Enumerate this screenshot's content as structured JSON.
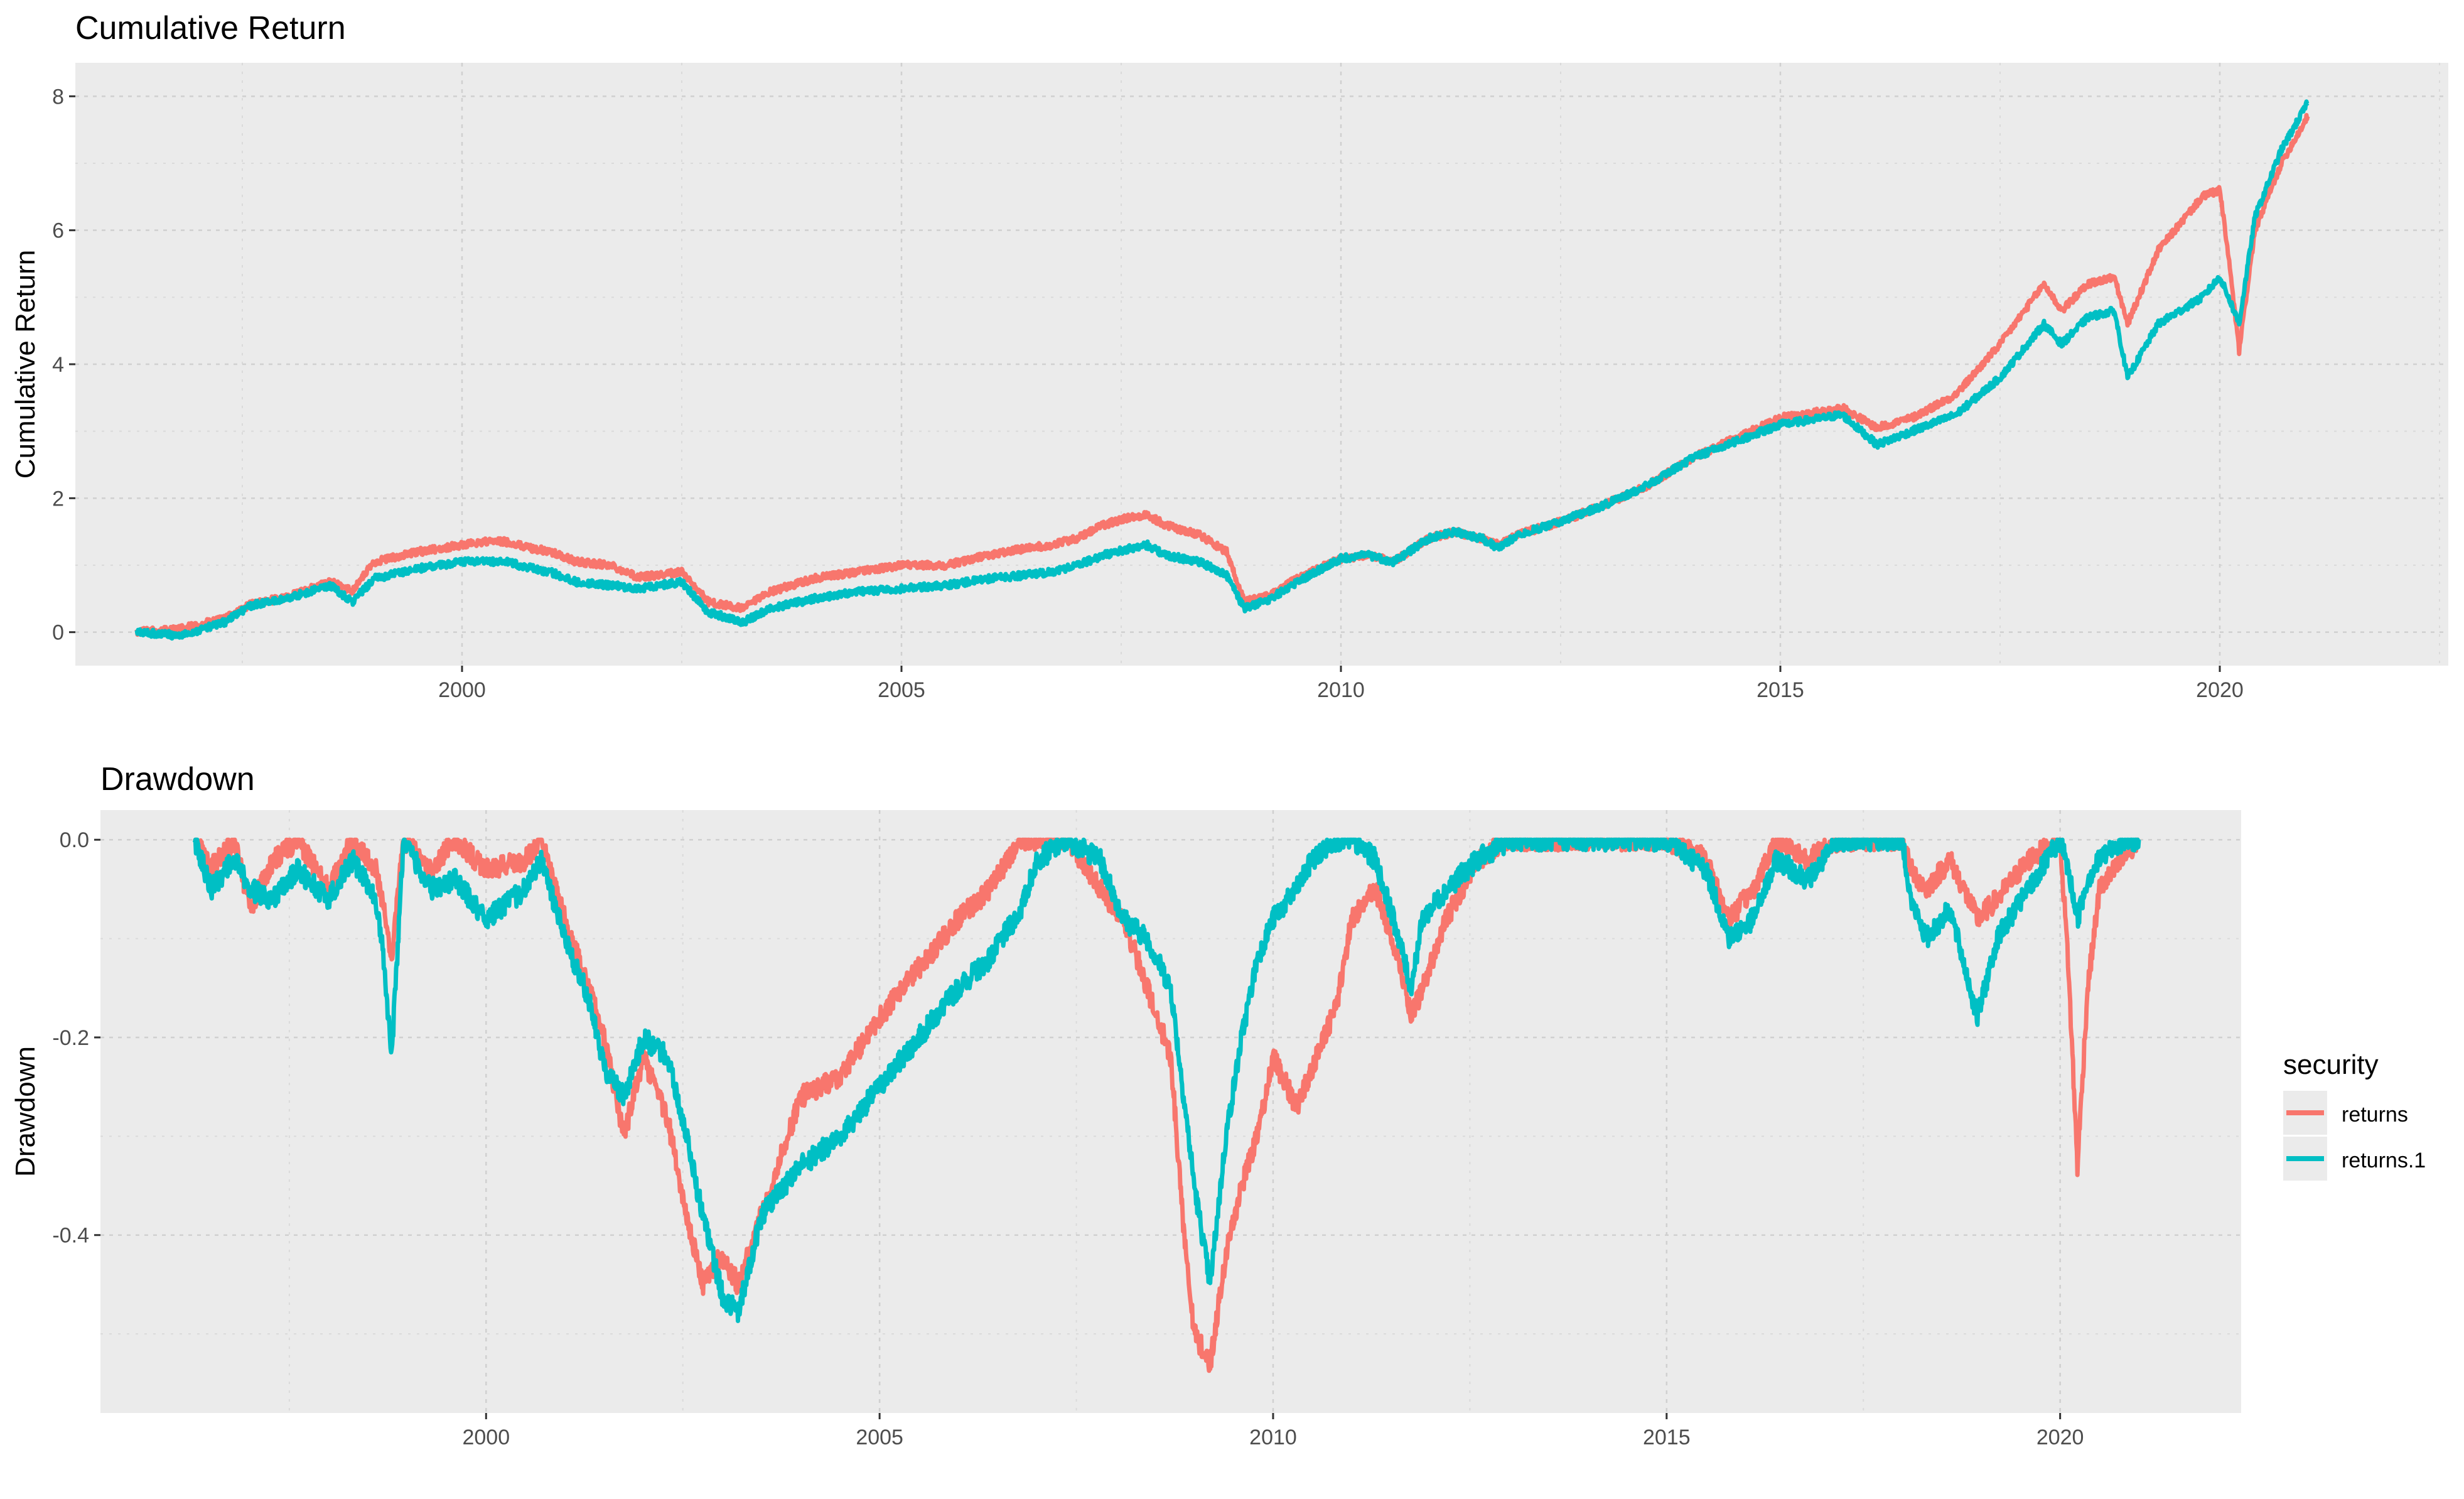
{
  "colors": {
    "returns": "#F8766D",
    "returns_1": "#00BFC4",
    "panel_bg": "#EBEBEB",
    "grid_major": "#D0D0D0",
    "grid_minor": "#F4F4F4",
    "text": "#000000",
    "tick_text": "#4D4D4D"
  },
  "chart_data": [
    {
      "type": "line",
      "title": "Cumulative Return",
      "xlabel": "",
      "ylabel": "Cumulative Return",
      "xlim": [
        1995.6,
        2022.6
      ],
      "ylim": [
        -0.5,
        8.5
      ],
      "x_ticks": [
        2000,
        2005,
        2010,
        2015,
        2020
      ],
      "x_tick_labels": [
        "2000",
        "2005",
        "2010",
        "2015",
        "2020"
      ],
      "y_ticks": [
        0,
        2,
        4,
        6,
        8
      ],
      "y_tick_labels": [
        "0",
        "2",
        "4",
        "6",
        "8"
      ],
      "grid": true,
      "x": [
        1996.3,
        1996.8,
        1997.3,
        1997.6,
        1998.0,
        1998.5,
        1998.75,
        1999.0,
        1999.5,
        2000.0,
        2000.25,
        2000.5,
        2000.8,
        2001.0,
        2001.3,
        2001.7,
        2002.0,
        2002.5,
        2002.8,
        2003.2,
        2003.5,
        2004.0,
        2004.5,
        2005.0,
        2005.5,
        2006.0,
        2006.4,
        2006.7,
        2007.0,
        2007.3,
        2007.6,
        2007.8,
        2008.0,
        2008.4,
        2008.7,
        2008.9,
        2009.2,
        2009.5,
        2010.0,
        2010.3,
        2010.6,
        2011.0,
        2011.3,
        2011.6,
        2011.8,
        2012.0,
        2012.5,
        2013.0,
        2013.5,
        2014.0,
        2014.5,
        2015.0,
        2015.5,
        2015.7,
        2016.1,
        2016.5,
        2017.0,
        2017.5,
        2018.0,
        2018.2,
        2018.5,
        2018.8,
        2018.95,
        2019.3,
        2019.8,
        2020.0,
        2020.1,
        2020.22,
        2020.4,
        2020.7,
        2021.0
      ],
      "series": [
        {
          "name": "returns",
          "color": "#F8766D",
          "values": [
            0.0,
            0.05,
            0.2,
            0.42,
            0.52,
            0.75,
            0.62,
            1.05,
            1.2,
            1.3,
            1.35,
            1.35,
            1.25,
            1.2,
            1.05,
            1.0,
            0.82,
            0.9,
            0.45,
            0.35,
            0.6,
            0.8,
            0.9,
            1.0,
            1.0,
            1.15,
            1.25,
            1.3,
            1.4,
            1.6,
            1.72,
            1.75,
            1.6,
            1.45,
            1.2,
            0.45,
            0.55,
            0.8,
            1.1,
            1.15,
            1.05,
            1.4,
            1.5,
            1.4,
            1.3,
            1.45,
            1.65,
            1.9,
            2.2,
            2.6,
            2.9,
            3.2,
            3.3,
            3.35,
            3.05,
            3.2,
            3.55,
            4.3,
            5.2,
            4.8,
            5.2,
            5.3,
            4.6,
            5.7,
            6.5,
            6.6,
            5.6,
            4.2,
            6.0,
            7.0,
            7.7
          ]
        },
        {
          "name": "returns.1",
          "color": "#00BFC4",
          "values": [
            0.0,
            -0.05,
            0.15,
            0.4,
            0.5,
            0.7,
            0.45,
            0.8,
            0.95,
            1.05,
            1.05,
            1.05,
            0.95,
            0.9,
            0.75,
            0.7,
            0.65,
            0.75,
            0.3,
            0.15,
            0.35,
            0.5,
            0.6,
            0.65,
            0.7,
            0.8,
            0.85,
            0.9,
            1.0,
            1.15,
            1.25,
            1.3,
            1.15,
            1.05,
            0.85,
            0.35,
            0.5,
            0.75,
            1.1,
            1.15,
            1.05,
            1.4,
            1.5,
            1.4,
            1.25,
            1.45,
            1.65,
            1.9,
            2.2,
            2.6,
            2.85,
            3.1,
            3.2,
            3.25,
            2.8,
            3.0,
            3.25,
            3.8,
            4.6,
            4.3,
            4.7,
            4.8,
            3.8,
            4.6,
            5.0,
            5.3,
            5.0,
            4.6,
            6.2,
            7.2,
            7.9
          ]
        }
      ]
    },
    {
      "type": "line",
      "title": "Drawdown",
      "xlabel": "",
      "ylabel": "Drawdown",
      "xlim": [
        1995.1,
        2022.3
      ],
      "ylim": [
        -0.58,
        0.03
      ],
      "x_ticks": [
        2000,
        2005,
        2010,
        2015,
        2020
      ],
      "x_tick_labels": [
        "2000",
        "2005",
        "2010",
        "2015",
        "2020"
      ],
      "y_ticks": [
        0.0,
        -0.2,
        -0.4
      ],
      "y_tick_labels": [
        "0.0",
        "-0.2",
        "-0.4"
      ],
      "grid": true,
      "legend_position": "right",
      "legend_title": "security",
      "x": [
        1996.3,
        1996.5,
        1996.8,
        1997.0,
        1997.3,
        1997.6,
        1998.0,
        1998.3,
        1998.6,
        1998.7,
        1998.8,
        1998.95,
        1999.3,
        1999.6,
        2000.0,
        2000.5,
        2000.7,
        2001.0,
        2001.3,
        2001.5,
        2001.75,
        2002.0,
        2002.3,
        2002.55,
        2002.75,
        2003.0,
        2003.2,
        2003.5,
        2004.0,
        2004.5,
        2005.0,
        2005.5,
        2006.0,
        2006.4,
        2006.8,
        2007.0,
        2007.4,
        2007.8,
        2008.1,
        2008.4,
        2008.7,
        2008.85,
        2009.0,
        2009.2,
        2009.4,
        2009.6,
        2009.8,
        2010.0,
        2010.3,
        2010.5,
        2010.8,
        2011.0,
        2011.3,
        2011.6,
        2011.75,
        2011.9,
        2012.2,
        2012.6,
        2013.0,
        2014.0,
        2015.0,
        2015.5,
        2015.8,
        2016.1,
        2016.4,
        2016.8,
        2017.2,
        2018.0,
        2018.1,
        2018.3,
        2018.6,
        2018.95,
        2019.2,
        2019.6,
        2020.0,
        2020.1,
        2020.22,
        2020.35,
        2020.5,
        2020.8,
        2021.0
      ],
      "series": [
        {
          "name": "returns",
          "color": "#F8766D",
          "values": [
            0.0,
            -0.03,
            0.0,
            -0.07,
            -0.02,
            0.0,
            -0.05,
            0.0,
            -0.03,
            -0.07,
            -0.12,
            0.0,
            -0.03,
            0.0,
            -0.03,
            -0.02,
            0.0,
            -0.08,
            -0.15,
            -0.2,
            -0.3,
            -0.22,
            -0.28,
            -0.38,
            -0.45,
            -0.42,
            -0.45,
            -0.38,
            -0.26,
            -0.24,
            -0.18,
            -0.13,
            -0.08,
            -0.05,
            0.0,
            0.0,
            0.0,
            -0.05,
            -0.08,
            -0.15,
            -0.22,
            -0.38,
            -0.5,
            -0.53,
            -0.42,
            -0.35,
            -0.3,
            -0.22,
            -0.27,
            -0.23,
            -0.17,
            -0.08,
            -0.05,
            -0.12,
            -0.18,
            -0.15,
            -0.08,
            -0.02,
            0.0,
            0.0,
            0.0,
            -0.02,
            -0.08,
            -0.05,
            0.0,
            -0.02,
            0.0,
            0.0,
            -0.03,
            -0.05,
            -0.02,
            -0.08,
            -0.06,
            -0.02,
            0.0,
            -0.12,
            -0.33,
            -0.15,
            -0.05,
            -0.02,
            0.0
          ]
        },
        {
          "name": "returns.1",
          "color": "#00BFC4",
          "values": [
            0.0,
            -0.05,
            -0.02,
            -0.05,
            -0.06,
            -0.03,
            -0.06,
            -0.02,
            -0.06,
            -0.12,
            -0.22,
            0.0,
            -0.05,
            -0.04,
            -0.08,
            -0.05,
            -0.02,
            -0.1,
            -0.16,
            -0.23,
            -0.26,
            -0.2,
            -0.22,
            -0.3,
            -0.38,
            -0.46,
            -0.48,
            -0.38,
            -0.33,
            -0.3,
            -0.25,
            -0.2,
            -0.15,
            -0.12,
            -0.07,
            -0.02,
            0.0,
            -0.02,
            -0.08,
            -0.1,
            -0.15,
            -0.25,
            -0.35,
            -0.45,
            -0.3,
            -0.2,
            -0.12,
            -0.08,
            -0.05,
            -0.02,
            0.0,
            0.0,
            -0.02,
            -0.1,
            -0.15,
            -0.08,
            -0.05,
            -0.02,
            0.0,
            0.0,
            0.0,
            -0.03,
            -0.1,
            -0.08,
            -0.02,
            -0.04,
            0.0,
            0.0,
            -0.06,
            -0.1,
            -0.07,
            -0.18,
            -0.1,
            -0.05,
            0.0,
            -0.03,
            -0.08,
            -0.04,
            -0.02,
            0.0,
            0.0
          ]
        }
      ]
    }
  ]
}
